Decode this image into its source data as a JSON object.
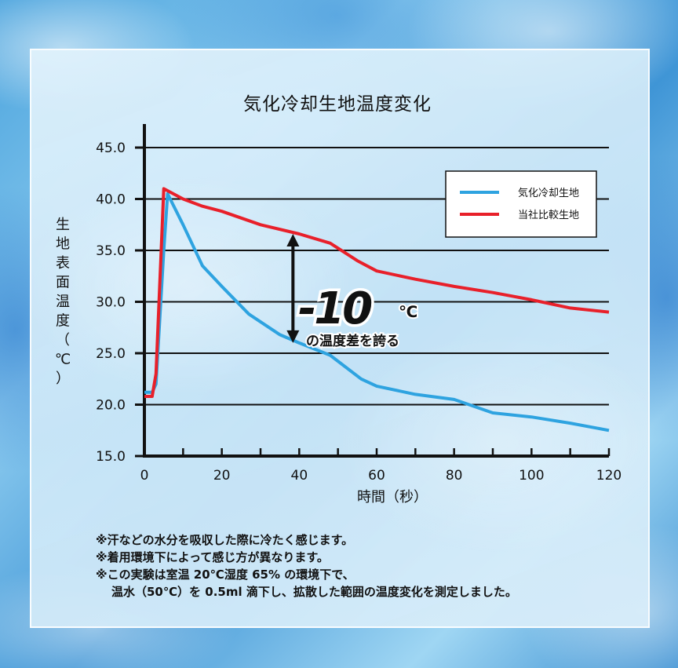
{
  "chart_data": {
    "type": "line",
    "title": "気化冷却生地温度変化",
    "ylabel": "生地表面温度（℃）",
    "xlabel": "時間（秒）",
    "xlim": [
      0,
      120
    ],
    "ylim": [
      15,
      45
    ],
    "xticks": [
      "0",
      "20",
      "40",
      "60",
      "80",
      "100",
      "120"
    ],
    "yticks": [
      "45.0",
      "40.0",
      "35.0",
      "30.0",
      "25.0",
      "20.0",
      "15.0"
    ],
    "grid": "horizontal",
    "legend_position": "top-right",
    "series": [
      {
        "name": "気化冷却生地",
        "color": "#2ea3e0",
        "points": [
          [
            0,
            21.2
          ],
          [
            2,
            21.2
          ],
          [
            3,
            22
          ],
          [
            5,
            35
          ],
          [
            6,
            40.5
          ],
          [
            10,
            37.5
          ],
          [
            15,
            33.5
          ],
          [
            20,
            31.5
          ],
          [
            27,
            28.8
          ],
          [
            35,
            26.8
          ],
          [
            40,
            26.0
          ],
          [
            48,
            24.8
          ],
          [
            56,
            22.5
          ],
          [
            60,
            21.8
          ],
          [
            70,
            21.0
          ],
          [
            80,
            20.5
          ],
          [
            90,
            19.2
          ],
          [
            100,
            18.8
          ],
          [
            110,
            18.2
          ],
          [
            120,
            17.5
          ]
        ]
      },
      {
        "name": "当社比較生地",
        "color": "#e8202a",
        "points": [
          [
            0,
            20.8
          ],
          [
            2,
            20.8
          ],
          [
            3,
            23
          ],
          [
            5,
            41.0
          ],
          [
            10,
            40.0
          ],
          [
            15,
            39.3
          ],
          [
            20,
            38.8
          ],
          [
            30,
            37.5
          ],
          [
            40,
            36.6
          ],
          [
            48,
            35.7
          ],
          [
            55,
            34.0
          ],
          [
            60,
            33.0
          ],
          [
            70,
            32.2
          ],
          [
            80,
            31.5
          ],
          [
            90,
            30.9
          ],
          [
            100,
            30.2
          ],
          [
            110,
            29.4
          ],
          [
            120,
            29.0
          ]
        ]
      }
    ],
    "annotation": {
      "value_text": "-10",
      "unit": "℃",
      "caption": "の温度差を誇る",
      "arrow_at_x": 40,
      "arrow_from": 36.6,
      "arrow_to": 26.0
    }
  },
  "notes": [
    "※汗などの水分を吸収した際に冷たく感じます。",
    "※着用環境下によって感じ方が異なります。",
    "※この実験は室温 20℃湿度 65% の環境下で、",
    "温水（50℃）を 0.5ml 滴下し、拡散した範囲の温度変化を測定しました。"
  ]
}
